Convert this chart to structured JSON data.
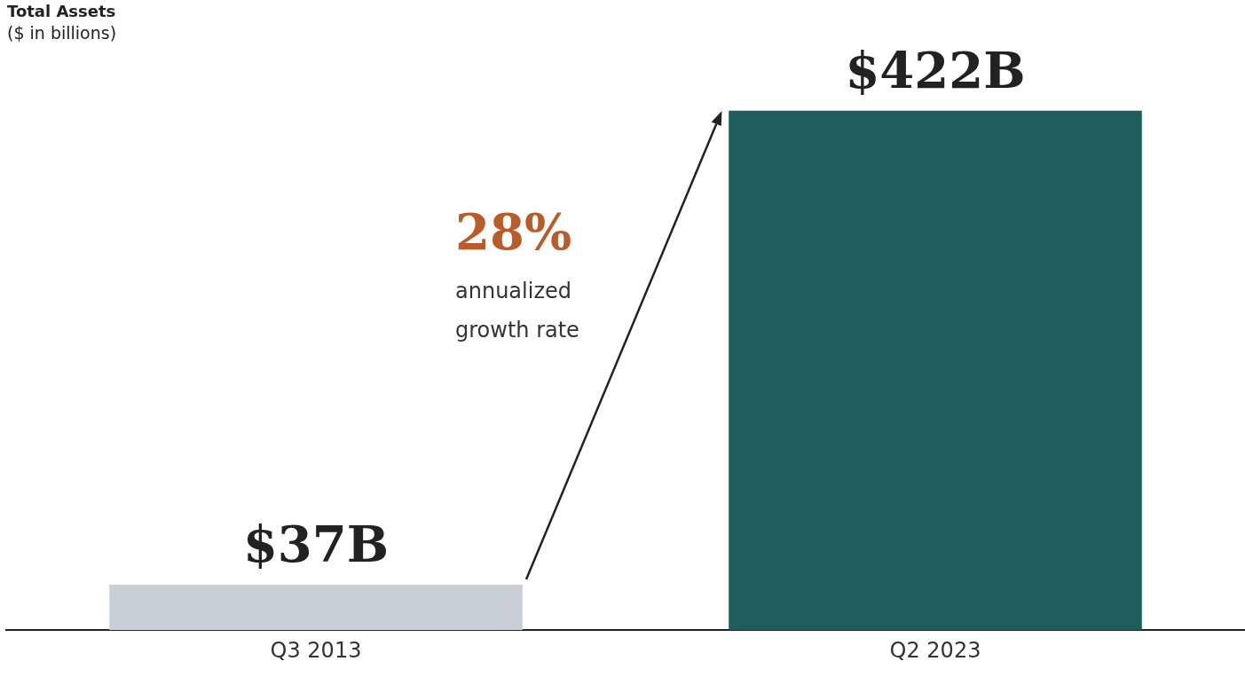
{
  "chart_data": {
    "type": "bar",
    "title": "Total Assets",
    "subtitle": "($ in billions)",
    "categories": [
      "Q3 2013",
      "Q2 2023"
    ],
    "values": [
      37,
      422
    ],
    "colors": [
      "#c8cfd7",
      "#1e5e5c"
    ],
    "value_labels": [
      "$37B",
      "$422B"
    ],
    "grid": false,
    "legend": false,
    "annotations": [
      "28%",
      "annualized growth rate"
    ]
  }
}
